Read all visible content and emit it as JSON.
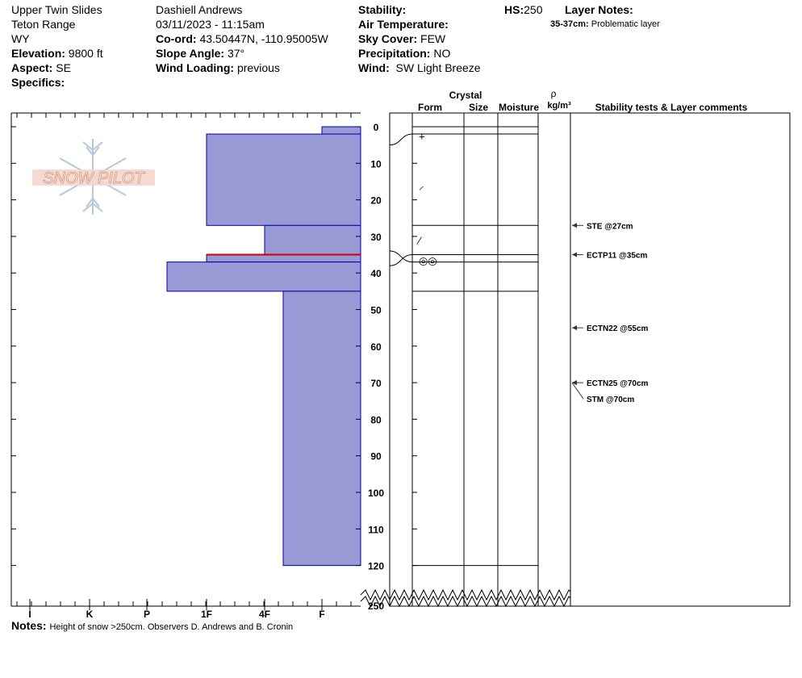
{
  "header": {
    "location": "Upper Twin Slides",
    "range": "Teton Range",
    "state": "WY",
    "elevation_label": "Elevation:",
    "elevation_value": "9800 ft",
    "aspect_label": "Aspect:",
    "aspect_value": "SE",
    "specifics_label": "Specifics:",
    "observer": "Dashiell Andrews",
    "datetime": "03/11/2023 - 11:15am",
    "coord_label": "Co-ord:",
    "coord_value": "43.50447N, -110.95005W",
    "slope_label": "Slope Angle:",
    "slope_value": "37°",
    "wind_loading_label": "Wind Loading:",
    "wind_loading_value": "previous",
    "stability_label": "Stability:",
    "air_temp_label": "Air Temperature:",
    "sky_label": "Sky Cover:",
    "sky_value": "FEW",
    "precip_label": "Precipitation:",
    "precip_value": "NO",
    "wind_label": "Wind:",
    "wind_value": "SW Light Breeze",
    "hs_label": "HS:",
    "hs_value": "250",
    "layer_notes_label": "Layer Notes:",
    "layer_note_range": "35-37cm:",
    "layer_note_text": "Problematic layer"
  },
  "columns": {
    "crystal": "Crystal",
    "form": "Form",
    "size": "Size",
    "moisture": "Moisture",
    "rho": "ρ",
    "density_unit": "kg/m³",
    "stability": "Stability tests & Layer comments"
  },
  "logo_text": "SNOW PILOT",
  "notes_label": "Notes:",
  "notes_text": "Height of snow >250cm. Observers D. Andrews and B. Cronin",
  "colors": {
    "layer_fill": "#9999d6",
    "layer_stroke": "#0000aa",
    "weak_layer": "#cc0000",
    "logo": "#e8b9a8",
    "flake": "#b8c8d8"
  },
  "chart_data": {
    "type": "snow-profile",
    "depth_axis": {
      "ticks": [
        0,
        10,
        20,
        30,
        40,
        50,
        60,
        70,
        80,
        90,
        100,
        110,
        120
      ],
      "bottom_label": 250,
      "unit": "cm"
    },
    "hardness_axis": {
      "labels": [
        "I",
        "K",
        "P",
        "1F",
        "4F",
        "F"
      ]
    },
    "layers": [
      {
        "top": 0,
        "bottom": 2,
        "hardness": "F"
      },
      {
        "top": 2,
        "bottom": 27,
        "hardness": "1F"
      },
      {
        "top": 27,
        "bottom": 35,
        "hardness": "4F"
      },
      {
        "top": 35,
        "bottom": 37,
        "hardness": "1F",
        "weak_layer": true
      },
      {
        "top": 37,
        "bottom": 45,
        "hardness": "P+"
      },
      {
        "top": 45,
        "bottom": 120,
        "hardness": "4F+"
      }
    ],
    "grain_forms": [
      {
        "depth": 2.5,
        "symbol": "+"
      },
      {
        "depth": 16,
        "symbol": "⸝"
      },
      {
        "depth": 31,
        "symbol": "⁄"
      },
      {
        "depth": 36.5,
        "symbol": "◎◎"
      }
    ],
    "stability_tests": [
      {
        "depth": 27,
        "label": "STE @27cm"
      },
      {
        "depth": 35,
        "label": "ECTP11 @35cm"
      },
      {
        "depth": 55,
        "label": "ECTN22 @55cm"
      },
      {
        "depth": 70,
        "label": "ECTN25 @70cm"
      },
      {
        "depth": 70,
        "label": "STM @70cm"
      }
    ]
  }
}
